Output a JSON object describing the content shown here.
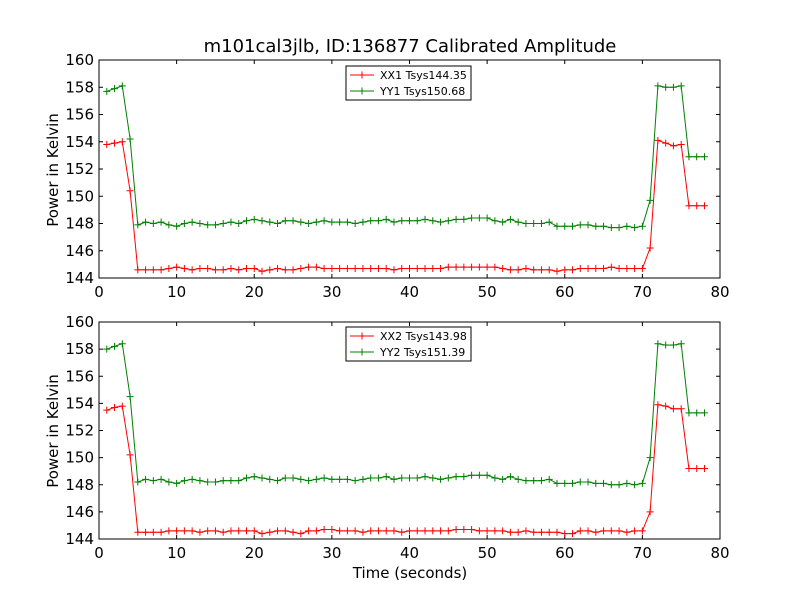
{
  "figure": {
    "title": "m101cal3jlb, ID:136877 Calibrated Amplitude",
    "xlabel": "Time (seconds)",
    "colors": {
      "xx": "#ff0000",
      "yy": "#008000"
    }
  },
  "chart_data": [
    {
      "type": "line",
      "title": "m101cal3jlb, ID:136877 Calibrated Amplitude",
      "xlabel": "",
      "ylabel": "Power in Kelvin",
      "xlim": [
        0,
        80
      ],
      "ylim": [
        144,
        160
      ],
      "xticks": [
        "0",
        "10",
        "20",
        "30",
        "40",
        "50",
        "60",
        "70",
        "80"
      ],
      "yticks": [
        "144",
        "146",
        "148",
        "150",
        "152",
        "154",
        "156",
        "158",
        "160"
      ],
      "grid": false,
      "legend": "top-center",
      "series": [
        {
          "name": "XX1 Tsys144.35",
          "color": "#ff0000",
          "x": [
            1,
            2,
            3,
            4,
            5,
            6,
            7,
            8,
            9,
            10,
            11,
            12,
            13,
            14,
            15,
            16,
            17,
            18,
            19,
            20,
            21,
            22,
            23,
            24,
            25,
            26,
            27,
            28,
            29,
            30,
            31,
            32,
            33,
            34,
            35,
            36,
            37,
            38,
            39,
            40,
            41,
            42,
            43,
            44,
            45,
            46,
            47,
            48,
            49,
            50,
            51,
            52,
            53,
            54,
            55,
            56,
            57,
            58,
            59,
            60,
            61,
            62,
            63,
            64,
            65,
            66,
            67,
            68,
            69,
            70,
            71,
            72,
            73,
            74,
            75,
            76,
            77,
            78
          ],
          "values": [
            153.8,
            153.9,
            154.0,
            150.4,
            144.6,
            144.6,
            144.6,
            144.6,
            144.7,
            144.8,
            144.7,
            144.6,
            144.7,
            144.7,
            144.6,
            144.6,
            144.7,
            144.6,
            144.7,
            144.7,
            144.5,
            144.6,
            144.7,
            144.6,
            144.6,
            144.7,
            144.8,
            144.8,
            144.7,
            144.7,
            144.7,
            144.7,
            144.7,
            144.7,
            144.7,
            144.7,
            144.7,
            144.6,
            144.7,
            144.7,
            144.7,
            144.7,
            144.7,
            144.7,
            144.8,
            144.8,
            144.8,
            144.8,
            144.8,
            144.8,
            144.8,
            144.7,
            144.6,
            144.6,
            144.7,
            144.6,
            144.6,
            144.6,
            144.5,
            144.6,
            144.6,
            144.7,
            144.7,
            144.7,
            144.7,
            144.8,
            144.7,
            144.7,
            144.7,
            144.7,
            146.2,
            154.1,
            153.9,
            153.7,
            153.8,
            149.3,
            149.3,
            149.3
          ]
        },
        {
          "name": "YY1 Tsys150.68",
          "color": "#008000",
          "x": [
            1,
            2,
            3,
            4,
            5,
            6,
            7,
            8,
            9,
            10,
            11,
            12,
            13,
            14,
            15,
            16,
            17,
            18,
            19,
            20,
            21,
            22,
            23,
            24,
            25,
            26,
            27,
            28,
            29,
            30,
            31,
            32,
            33,
            34,
            35,
            36,
            37,
            38,
            39,
            40,
            41,
            42,
            43,
            44,
            45,
            46,
            47,
            48,
            49,
            50,
            51,
            52,
            53,
            54,
            55,
            56,
            57,
            58,
            59,
            60,
            61,
            62,
            63,
            64,
            65,
            66,
            67,
            68,
            69,
            70,
            71,
            72,
            73,
            74,
            75,
            76,
            77,
            78
          ],
          "values": [
            157.7,
            157.9,
            158.1,
            154.2,
            147.9,
            148.1,
            148.0,
            148.1,
            147.9,
            147.8,
            148.0,
            148.1,
            148.0,
            147.9,
            147.9,
            148.0,
            148.1,
            148.0,
            148.2,
            148.3,
            148.2,
            148.1,
            148.0,
            148.2,
            148.2,
            148.1,
            148.0,
            148.1,
            148.2,
            148.1,
            148.1,
            148.1,
            148.0,
            148.1,
            148.2,
            148.2,
            148.3,
            148.1,
            148.2,
            148.2,
            148.2,
            148.3,
            148.2,
            148.1,
            148.2,
            148.3,
            148.3,
            148.4,
            148.4,
            148.4,
            148.2,
            148.1,
            148.3,
            148.1,
            148.0,
            148.0,
            148.0,
            148.1,
            147.8,
            147.8,
            147.8,
            147.9,
            147.9,
            147.8,
            147.8,
            147.7,
            147.7,
            147.8,
            147.7,
            147.8,
            149.7,
            158.1,
            158.0,
            158.0,
            158.1,
            152.9,
            152.9,
            152.9
          ]
        }
      ]
    },
    {
      "type": "line",
      "title": "",
      "xlabel": "Time (seconds)",
      "ylabel": "Power in Kelvin",
      "xlim": [
        0,
        80
      ],
      "ylim": [
        144,
        160
      ],
      "xticks": [
        "0",
        "10",
        "20",
        "30",
        "40",
        "50",
        "60",
        "70",
        "80"
      ],
      "yticks": [
        "144",
        "146",
        "148",
        "150",
        "152",
        "154",
        "156",
        "158",
        "160"
      ],
      "grid": false,
      "legend": "top-center",
      "series": [
        {
          "name": "XX2 Tsys143.98",
          "color": "#ff0000",
          "x": [
            1,
            2,
            3,
            4,
            5,
            6,
            7,
            8,
            9,
            10,
            11,
            12,
            13,
            14,
            15,
            16,
            17,
            18,
            19,
            20,
            21,
            22,
            23,
            24,
            25,
            26,
            27,
            28,
            29,
            30,
            31,
            32,
            33,
            34,
            35,
            36,
            37,
            38,
            39,
            40,
            41,
            42,
            43,
            44,
            45,
            46,
            47,
            48,
            49,
            50,
            51,
            52,
            53,
            54,
            55,
            56,
            57,
            58,
            59,
            60,
            61,
            62,
            63,
            64,
            65,
            66,
            67,
            68,
            69,
            70,
            71,
            72,
            73,
            74,
            75,
            76,
            77,
            78
          ],
          "values": [
            153.5,
            153.7,
            153.8,
            150.2,
            144.5,
            144.5,
            144.5,
            144.5,
            144.6,
            144.6,
            144.6,
            144.6,
            144.5,
            144.6,
            144.6,
            144.5,
            144.6,
            144.6,
            144.6,
            144.6,
            144.4,
            144.5,
            144.6,
            144.6,
            144.5,
            144.4,
            144.6,
            144.6,
            144.7,
            144.7,
            144.6,
            144.6,
            144.6,
            144.5,
            144.6,
            144.6,
            144.6,
            144.6,
            144.5,
            144.6,
            144.6,
            144.6,
            144.6,
            144.6,
            144.6,
            144.7,
            144.7,
            144.7,
            144.6,
            144.6,
            144.6,
            144.6,
            144.5,
            144.5,
            144.6,
            144.5,
            144.5,
            144.5,
            144.5,
            144.4,
            144.4,
            144.6,
            144.6,
            144.5,
            144.6,
            144.6,
            144.6,
            144.5,
            144.6,
            144.6,
            146.0,
            153.9,
            153.8,
            153.6,
            153.6,
            149.2,
            149.2,
            149.2
          ]
        },
        {
          "name": "YY2 Tsys151.39",
          "color": "#008000",
          "x": [
            1,
            2,
            3,
            4,
            5,
            6,
            7,
            8,
            9,
            10,
            11,
            12,
            13,
            14,
            15,
            16,
            17,
            18,
            19,
            20,
            21,
            22,
            23,
            24,
            25,
            26,
            27,
            28,
            29,
            30,
            31,
            32,
            33,
            34,
            35,
            36,
            37,
            38,
            39,
            40,
            41,
            42,
            43,
            44,
            45,
            46,
            47,
            48,
            49,
            50,
            51,
            52,
            53,
            54,
            55,
            56,
            57,
            58,
            59,
            60,
            61,
            62,
            63,
            64,
            65,
            66,
            67,
            68,
            69,
            70,
            71,
            72,
            73,
            74,
            75,
            76,
            77,
            78
          ],
          "values": [
            158.0,
            158.2,
            158.4,
            154.5,
            148.2,
            148.4,
            148.3,
            148.4,
            148.2,
            148.1,
            148.3,
            148.4,
            148.3,
            148.2,
            148.2,
            148.3,
            148.3,
            148.3,
            148.5,
            148.6,
            148.5,
            148.4,
            148.3,
            148.5,
            148.5,
            148.4,
            148.3,
            148.4,
            148.5,
            148.4,
            148.4,
            148.4,
            148.3,
            148.4,
            148.5,
            148.5,
            148.6,
            148.4,
            148.5,
            148.5,
            148.5,
            148.6,
            148.5,
            148.4,
            148.5,
            148.6,
            148.6,
            148.7,
            148.7,
            148.7,
            148.5,
            148.4,
            148.6,
            148.4,
            148.3,
            148.3,
            148.3,
            148.4,
            148.1,
            148.1,
            148.1,
            148.2,
            148.2,
            148.1,
            148.1,
            148.0,
            148.0,
            148.1,
            148.0,
            148.1,
            150.0,
            158.4,
            158.3,
            158.3,
            158.4,
            153.3,
            153.3,
            153.3
          ]
        }
      ]
    }
  ]
}
